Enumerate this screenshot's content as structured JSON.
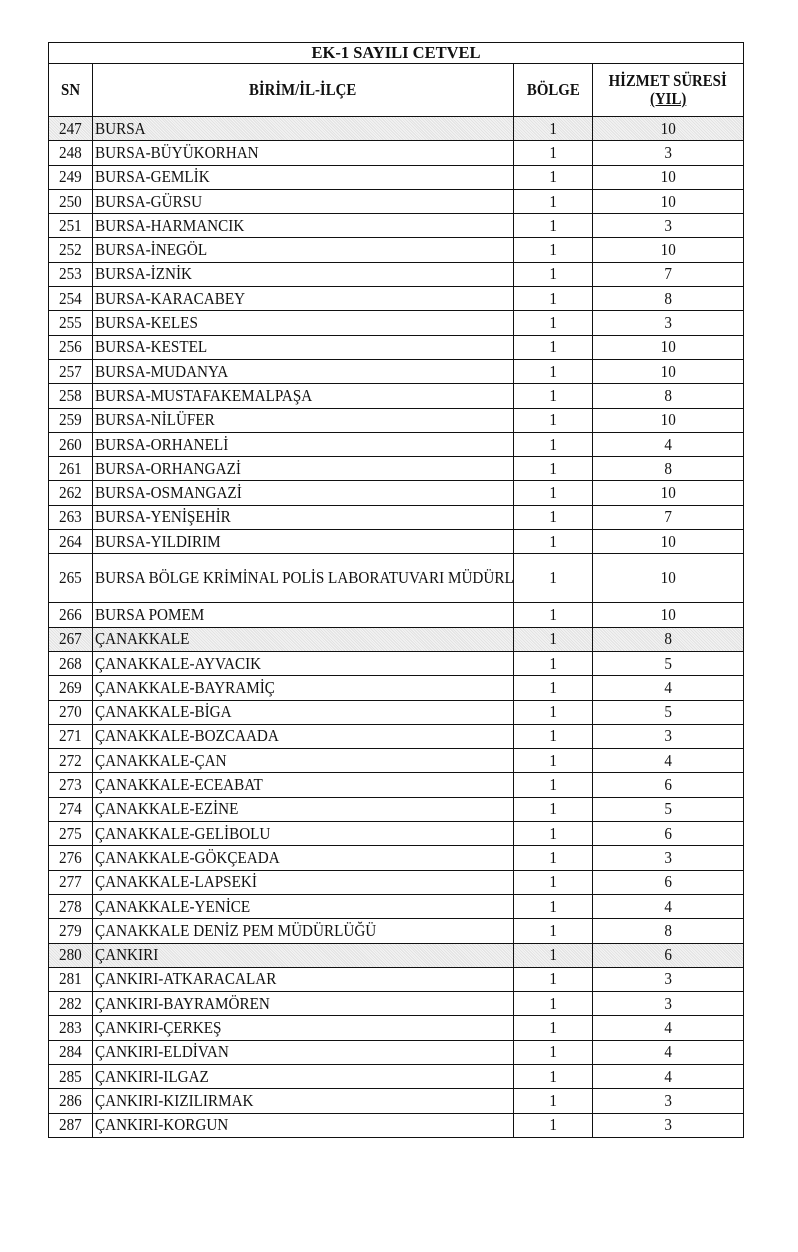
{
  "title": "EK-1 SAYILI CETVEL",
  "headers": {
    "sn": "SN",
    "name": "BİRİM/İL-İLÇE",
    "region": "BÖLGE",
    "duration_line1": "HİZMET SÜRESİ",
    "duration_line2": "(YIL)"
  },
  "colors": {
    "shaded_row": "#e9e9e9",
    "border": "#111111"
  },
  "rows": [
    {
      "sn": "247",
      "name": "BURSA",
      "region": "1",
      "years": "10",
      "shaded": true
    },
    {
      "sn": "248",
      "name": "BURSA-BÜYÜKORHAN",
      "region": "1",
      "years": "3"
    },
    {
      "sn": "249",
      "name": "BURSA-GEMLİK",
      "region": "1",
      "years": "10"
    },
    {
      "sn": "250",
      "name": "BURSA-GÜRSU",
      "region": "1",
      "years": "10"
    },
    {
      "sn": "251",
      "name": "BURSA-HARMANCIK",
      "region": "1",
      "years": "3"
    },
    {
      "sn": "252",
      "name": "BURSA-İNEGÖL",
      "region": "1",
      "years": "10"
    },
    {
      "sn": "253",
      "name": "BURSA-İZNİK",
      "region": "1",
      "years": "7"
    },
    {
      "sn": "254",
      "name": "BURSA-KARACABEY",
      "region": "1",
      "years": "8"
    },
    {
      "sn": "255",
      "name": "BURSA-KELES",
      "region": "1",
      "years": "3"
    },
    {
      "sn": "256",
      "name": "BURSA-KESTEL",
      "region": "1",
      "years": "10"
    },
    {
      "sn": "257",
      "name": "BURSA-MUDANYA",
      "region": "1",
      "years": "10"
    },
    {
      "sn": "258",
      "name": "BURSA-MUSTAFAKEMALPAŞA",
      "region": "1",
      "years": "8"
    },
    {
      "sn": "259",
      "name": "BURSA-NİLÜFER",
      "region": "1",
      "years": "10"
    },
    {
      "sn": "260",
      "name": "BURSA-ORHANELİ",
      "region": "1",
      "years": "4"
    },
    {
      "sn": "261",
      "name": "BURSA-ORHANGAZİ",
      "region": "1",
      "years": "8"
    },
    {
      "sn": "262",
      "name": "BURSA-OSMANGAZİ",
      "region": "1",
      "years": "10"
    },
    {
      "sn": "263",
      "name": "BURSA-YENİŞEHİR",
      "region": "1",
      "years": "7"
    },
    {
      "sn": "264",
      "name": "BURSA-YILDIRIM",
      "region": "1",
      "years": "10"
    },
    {
      "sn": "265",
      "name": "BURSA BÖLGE KRİMİNAL POLİS LABORATUVARI MÜDÜRLÜĞÜ",
      "region": "1",
      "years": "10",
      "tall": true
    },
    {
      "sn": "266",
      "name": "BURSA POMEM",
      "region": "1",
      "years": "10"
    },
    {
      "sn": "267",
      "name": "ÇANAKKALE",
      "region": "1",
      "years": "8",
      "shaded": true
    },
    {
      "sn": "268",
      "name": "ÇANAKKALE-AYVACIK",
      "region": "1",
      "years": "5"
    },
    {
      "sn": "269",
      "name": "ÇANAKKALE-BAYRAMİÇ",
      "region": "1",
      "years": "4"
    },
    {
      "sn": "270",
      "name": "ÇANAKKALE-BİGA",
      "region": "1",
      "years": "5"
    },
    {
      "sn": "271",
      "name": "ÇANAKKALE-BOZCAADA",
      "region": "1",
      "years": "3"
    },
    {
      "sn": "272",
      "name": "ÇANAKKALE-ÇAN",
      "region": "1",
      "years": "4"
    },
    {
      "sn": "273",
      "name": "ÇANAKKALE-ECEABAT",
      "region": "1",
      "years": "6"
    },
    {
      "sn": "274",
      "name": "ÇANAKKALE-EZİNE",
      "region": "1",
      "years": "5"
    },
    {
      "sn": "275",
      "name": "ÇANAKKALE-GELİBOLU",
      "region": "1",
      "years": "6"
    },
    {
      "sn": "276",
      "name": "ÇANAKKALE-GÖKÇEADA",
      "region": "1",
      "years": "3"
    },
    {
      "sn": "277",
      "name": "ÇANAKKALE-LAPSEKİ",
      "region": "1",
      "years": "6"
    },
    {
      "sn": "278",
      "name": "ÇANAKKALE-YENİCE",
      "region": "1",
      "years": "4"
    },
    {
      "sn": "279",
      "name": "ÇANAKKALE DENİZ PEM MÜDÜRLÜĞÜ",
      "region": "1",
      "years": "8"
    },
    {
      "sn": "280",
      "name": "ÇANKIRI",
      "region": "1",
      "years": "6",
      "shaded": true
    },
    {
      "sn": "281",
      "name": "ÇANKIRI-ATKARACALAR",
      "region": "1",
      "years": "3"
    },
    {
      "sn": "282",
      "name": "ÇANKIRI-BAYRAMÖREN",
      "region": "1",
      "years": "3"
    },
    {
      "sn": "283",
      "name": "ÇANKIRI-ÇERKEŞ",
      "region": "1",
      "years": "4"
    },
    {
      "sn": "284",
      "name": "ÇANKIRI-ELDİVAN",
      "region": "1",
      "years": "4"
    },
    {
      "sn": "285",
      "name": "ÇANKIRI-ILGAZ",
      "region": "1",
      "years": "4"
    },
    {
      "sn": "286",
      "name": "ÇANKIRI-KIZILIRMAK",
      "region": "1",
      "years": "3"
    },
    {
      "sn": "287",
      "name": "ÇANKIRI-KORGUN",
      "region": "1",
      "years": "3"
    }
  ]
}
